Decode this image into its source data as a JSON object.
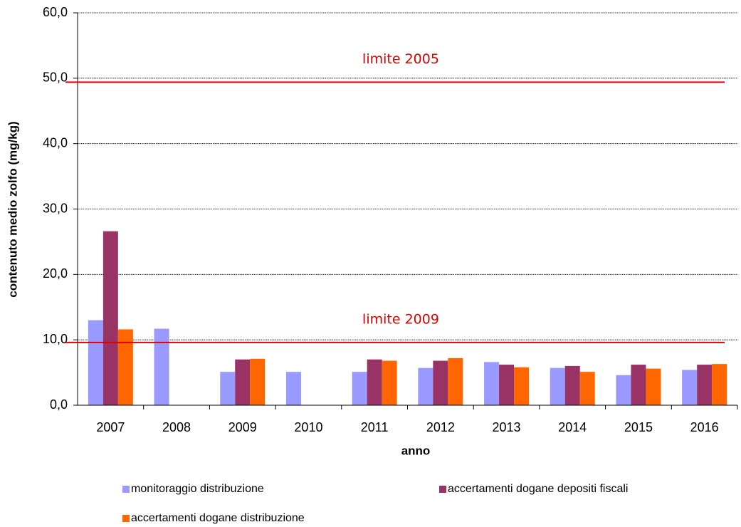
{
  "chart_data": {
    "type": "bar",
    "x_label": "anno",
    "y_label": "contenuto medio zolfo (mg/kg)",
    "categories": [
      "2007",
      "2008",
      "2009",
      "2010",
      "2011",
      "2012",
      "2013",
      "2014",
      "2015",
      "2016"
    ],
    "series": [
      {
        "name": "monitoraggio distribuzione",
        "color": "#9999ff",
        "values": [
          13.0,
          11.7,
          5.1,
          5.1,
          5.1,
          5.7,
          6.6,
          5.7,
          4.6,
          5.4
        ]
      },
      {
        "name": "accertamenti dogane depositi fiscali",
        "color": "#993366",
        "values": [
          26.6,
          null,
          7.0,
          null,
          7.0,
          6.8,
          6.2,
          6.0,
          6.2,
          6.2
        ]
      },
      {
        "name": "accertamenti dogane distribuzione",
        "color": "#ff6600",
        "values": [
          11.6,
          null,
          7.1,
          null,
          6.8,
          7.2,
          5.8,
          5.1,
          5.6,
          6.3
        ]
      }
    ],
    "ylim": [
      0,
      60
    ],
    "yticks": [
      {
        "value": 0,
        "label": "0,0"
      },
      {
        "value": 10,
        "label": "10,0"
      },
      {
        "value": 20,
        "label": "20,0"
      },
      {
        "value": 30,
        "label": "30,0"
      },
      {
        "value": 40,
        "label": "40,0"
      },
      {
        "value": 50,
        "label": "50,0"
      },
      {
        "value": 60,
        "label": "60,0"
      }
    ],
    "grid": true,
    "reference_lines": [
      {
        "label": "limite 2005",
        "value": 49.4,
        "color": "#e00000"
      },
      {
        "label": "limite 2009",
        "value": 9.6,
        "color": "#e00000"
      }
    ],
    "legend": "bottom"
  }
}
